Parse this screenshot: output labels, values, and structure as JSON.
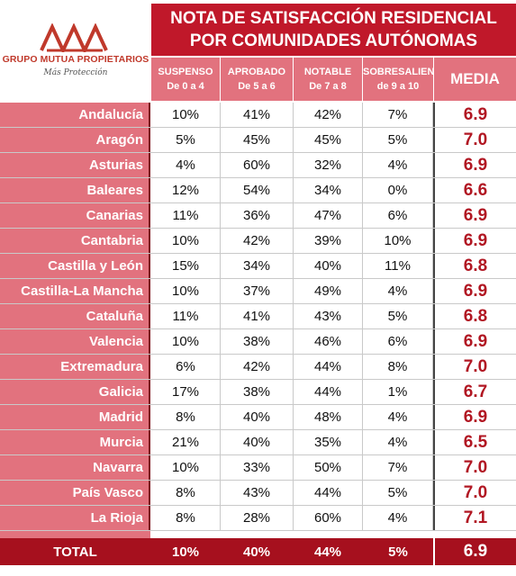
{
  "brand": {
    "name": "GRUPO MUTUA PROPIETARIOS",
    "tagline": "Más Protección",
    "color": "#c0392b"
  },
  "title": {
    "line1": "NOTA DE SATISFACCIÓN RESIDENCIAL",
    "line2": "POR COMUNIDADES AUTÓNOMAS"
  },
  "headers": [
    {
      "line1": "SUSPENSO",
      "line2": "De 0 a 4"
    },
    {
      "line1": "APROBADO",
      "line2": "De 5 a 6"
    },
    {
      "line1": "NOTABLE",
      "line2": "De 7 a 8"
    },
    {
      "line1": "SOBRESALIENTE",
      "line2": "de 9 a 10"
    },
    {
      "line1": "MEDIA",
      "line2": ""
    }
  ],
  "rows": [
    {
      "name": "Andalucía",
      "suspenso": "10%",
      "aprobado": "41%",
      "notable": "42%",
      "sobresaliente": "7%",
      "media": "6.9"
    },
    {
      "name": "Aragón",
      "suspenso": "5%",
      "aprobado": "45%",
      "notable": "45%",
      "sobresaliente": "5%",
      "media": "7.0"
    },
    {
      "name": "Asturias",
      "suspenso": "4%",
      "aprobado": "60%",
      "notable": "32%",
      "sobresaliente": "4%",
      "media": "6.9"
    },
    {
      "name": "Baleares",
      "suspenso": "12%",
      "aprobado": "54%",
      "notable": "34%",
      "sobresaliente": "0%",
      "media": "6.6"
    },
    {
      "name": "Canarias",
      "suspenso": "11%",
      "aprobado": "36%",
      "notable": "47%",
      "sobresaliente": "6%",
      "media": "6.9"
    },
    {
      "name": "Cantabria",
      "suspenso": "10%",
      "aprobado": "42%",
      "notable": "39%",
      "sobresaliente": "10%",
      "media": "6.9"
    },
    {
      "name": "Castilla y León",
      "suspenso": "15%",
      "aprobado": "34%",
      "notable": "40%",
      "sobresaliente": "11%",
      "media": "6.8"
    },
    {
      "name": "Castilla-La Mancha",
      "suspenso": "10%",
      "aprobado": "37%",
      "notable": "49%",
      "sobresaliente": "4%",
      "media": "6.9"
    },
    {
      "name": "Cataluña",
      "suspenso": "11%",
      "aprobado": "41%",
      "notable": "43%",
      "sobresaliente": "5%",
      "media": "6.8"
    },
    {
      "name": "Valencia",
      "suspenso": "10%",
      "aprobado": "38%",
      "notable": "46%",
      "sobresaliente": "6%",
      "media": "6.9"
    },
    {
      "name": "Extremadura",
      "suspenso": "6%",
      "aprobado": "42%",
      "notable": "44%",
      "sobresaliente": "8%",
      "media": "7.0"
    },
    {
      "name": "Galicia",
      "suspenso": "17%",
      "aprobado": "38%",
      "notable": "44%",
      "sobresaliente": "1%",
      "media": "6.7"
    },
    {
      "name": "Madrid",
      "suspenso": "8%",
      "aprobado": "40%",
      "notable": "48%",
      "sobresaliente": "4%",
      "media": "6.9"
    },
    {
      "name": "Murcia",
      "suspenso": "21%",
      "aprobado": "40%",
      "notable": "35%",
      "sobresaliente": "4%",
      "media": "6.5"
    },
    {
      "name": "Navarra",
      "suspenso": "10%",
      "aprobado": "33%",
      "notable": "50%",
      "sobresaliente": "7%",
      "media": "7.0"
    },
    {
      "name": "País Vasco",
      "suspenso": "8%",
      "aprobado": "43%",
      "notable": "44%",
      "sobresaliente": "5%",
      "media": "7.0"
    },
    {
      "name": "La Rioja",
      "suspenso": "8%",
      "aprobado": "28%",
      "notable": "60%",
      "sobresaliente": "4%",
      "media": "7.1"
    }
  ],
  "total": {
    "name": "TOTAL",
    "suspenso": "10%",
    "aprobado": "40%",
    "notable": "44%",
    "sobresaliente": "5%",
    "media": "6.9"
  },
  "colors": {
    "title_bg": "#c0182a",
    "header_bg": "#e2727e",
    "total_bg": "#a6101e",
    "media_text": "#b11622"
  }
}
